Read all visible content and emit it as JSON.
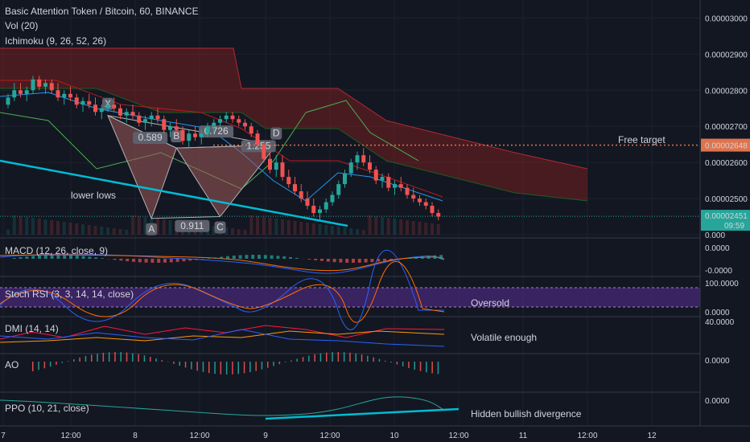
{
  "header": {
    "title": "Basic Attention Token / Bitcoin, 60, BINANCE",
    "vol": "Vol (20)",
    "ichimoku": "Ichimoku (9, 26, 52, 26)"
  },
  "price_axis": {
    "ticks": [
      "0.00003000",
      "0.00002900",
      "0.00002800",
      "0.00002700",
      "0.00002600",
      "0.00002500",
      "0.000"
    ],
    "ticks_v": [
      3.0,
      2.9,
      2.8,
      2.7,
      2.6,
      2.5,
      2.4
    ],
    "current_price": "0.00002451",
    "current_price_v": 2.451,
    "target_price": "0.00002648",
    "target_price_v": 2.648,
    "countdown": "09:59"
  },
  "time_axis": {
    "labels": [
      "7",
      "12:00",
      "8",
      "12:00",
      "9",
      "12:00",
      "10",
      "12:00",
      "11",
      "12:00",
      "12"
    ]
  },
  "pattern": {
    "points": [
      "X",
      "A",
      "B",
      "C",
      "D"
    ],
    "ratios": {
      "xb": "0.589",
      "ac": "0.911",
      "bd": "1.255",
      "xd": "0.726"
    }
  },
  "annotations": {
    "free_target": "Free target",
    "lower_lows": "lower lows",
    "oversold": "Oversold",
    "volatile": "Volatile enough",
    "hidden_div": "Hidden bullish divergence"
  },
  "indicators": {
    "macd": {
      "label": "MACD (12, 26, close, 9)",
      "ticks": [
        "0.0000",
        "-0.0000"
      ]
    },
    "stoch": {
      "label": "Stoch RSI (3, 3, 14, 14, close)",
      "ticks": [
        "100.0000",
        "0.0000"
      ]
    },
    "dmi": {
      "label": "DMI (14, 14)",
      "ticks": [
        "40.0000"
      ]
    },
    "ao": {
      "label": "AO",
      "ticks": [
        "0.0000"
      ]
    },
    "ppo": {
      "label": "PPO (10, 21, close)",
      "ticks": [
        "0.0000"
      ]
    }
  },
  "colors": {
    "bg": "#131722",
    "up": "#26a69a",
    "down": "#ef5350",
    "trend": "#00bcd4",
    "cloud": "#7d1f1f",
    "pattern_fill": "#a05a5a",
    "stoch_band": "#4a2a7a"
  },
  "chart_data": {
    "type": "candlestick",
    "ylim": [
      2.4,
      3.05
    ],
    "unit": "1e-5 BTC",
    "xlim": [
      0,
      130
    ],
    "candles_ohlc": [
      [
        2.76,
        2.79,
        2.75,
        2.78
      ],
      [
        2.78,
        2.82,
        2.77,
        2.8
      ],
      [
        2.8,
        2.82,
        2.78,
        2.79
      ],
      [
        2.79,
        2.81,
        2.77,
        2.8
      ],
      [
        2.8,
        2.84,
        2.79,
        2.83
      ],
      [
        2.83,
        2.84,
        2.8,
        2.81
      ],
      [
        2.81,
        2.83,
        2.79,
        2.82
      ],
      [
        2.82,
        2.83,
        2.79,
        2.8
      ],
      [
        2.8,
        2.82,
        2.77,
        2.78
      ],
      [
        2.78,
        2.8,
        2.76,
        2.79
      ],
      [
        2.79,
        2.81,
        2.77,
        2.78
      ],
      [
        2.78,
        2.79,
        2.75,
        2.76
      ],
      [
        2.76,
        2.78,
        2.74,
        2.77
      ],
      [
        2.77,
        2.79,
        2.75,
        2.76
      ],
      [
        2.76,
        2.78,
        2.73,
        2.74
      ],
      [
        2.74,
        2.76,
        2.72,
        2.75
      ],
      [
        2.75,
        2.77,
        2.74,
        2.76
      ],
      [
        2.76,
        2.78,
        2.74,
        2.75
      ],
      [
        2.75,
        2.76,
        2.72,
        2.73
      ],
      [
        2.73,
        2.75,
        2.71,
        2.74
      ],
      [
        2.74,
        2.76,
        2.72,
        2.73
      ],
      [
        2.73,
        2.74,
        2.7,
        2.71
      ],
      [
        2.71,
        2.73,
        2.69,
        2.72
      ],
      [
        2.72,
        2.74,
        2.7,
        2.73
      ],
      [
        2.73,
        2.75,
        2.71,
        2.72
      ],
      [
        2.72,
        2.73,
        2.68,
        2.69
      ],
      [
        2.69,
        2.71,
        2.67,
        2.7
      ],
      [
        2.7,
        2.72,
        2.68,
        2.69
      ],
      [
        2.69,
        2.7,
        2.65,
        2.66
      ],
      [
        2.66,
        2.69,
        2.64,
        2.68
      ],
      [
        2.68,
        2.7,
        2.66,
        2.67
      ],
      [
        2.67,
        2.69,
        2.65,
        2.68
      ],
      [
        2.68,
        2.71,
        2.67,
        2.7
      ],
      [
        2.7,
        2.72,
        2.68,
        2.71
      ],
      [
        2.71,
        2.73,
        2.7,
        2.72
      ],
      [
        2.72,
        2.74,
        2.71,
        2.73
      ],
      [
        2.73,
        2.74,
        2.71,
        2.72
      ],
      [
        2.72,
        2.73,
        2.7,
        2.71
      ],
      [
        2.71,
        2.72,
        2.69,
        2.7
      ],
      [
        2.7,
        2.71,
        2.67,
        2.68
      ],
      [
        2.68,
        2.69,
        2.64,
        2.65
      ],
      [
        2.65,
        2.66,
        2.6,
        2.61
      ],
      [
        2.61,
        2.63,
        2.57,
        2.58
      ],
      [
        2.58,
        2.62,
        2.56,
        2.6
      ],
      [
        2.6,
        2.62,
        2.55,
        2.56
      ],
      [
        2.56,
        2.58,
        2.53,
        2.54
      ],
      [
        2.54,
        2.56,
        2.51,
        2.52
      ],
      [
        2.52,
        2.54,
        2.49,
        2.5
      ],
      [
        2.5,
        2.52,
        2.47,
        2.48
      ],
      [
        2.48,
        2.5,
        2.45,
        2.46
      ],
      [
        2.46,
        2.48,
        2.44,
        2.47
      ],
      [
        2.47,
        2.5,
        2.46,
        2.49
      ],
      [
        2.49,
        2.52,
        2.48,
        2.51
      ],
      [
        2.51,
        2.55,
        2.5,
        2.54
      ],
      [
        2.54,
        2.58,
        2.53,
        2.57
      ],
      [
        2.57,
        2.61,
        2.56,
        2.6
      ],
      [
        2.6,
        2.63,
        2.58,
        2.62
      ],
      [
        2.62,
        2.64,
        2.59,
        2.6
      ],
      [
        2.6,
        2.62,
        2.57,
        2.58
      ],
      [
        2.58,
        2.59,
        2.54,
        2.55
      ],
      [
        2.55,
        2.57,
        2.53,
        2.56
      ],
      [
        2.56,
        2.57,
        2.52,
        2.53
      ],
      [
        2.53,
        2.55,
        2.51,
        2.54
      ],
      [
        2.54,
        2.56,
        2.52,
        2.53
      ],
      [
        2.53,
        2.54,
        2.5,
        2.51
      ],
      [
        2.51,
        2.53,
        2.49,
        2.5
      ],
      [
        2.5,
        2.51,
        2.48,
        2.49
      ],
      [
        2.49,
        2.5,
        2.47,
        2.48
      ],
      [
        2.48,
        2.49,
        2.45,
        2.46
      ],
      [
        2.46,
        2.47,
        2.44,
        2.45
      ]
    ],
    "pattern_xabcd": [
      [
        16,
        2.73
      ],
      [
        23,
        2.445
      ],
      [
        27,
        2.64
      ],
      [
        34,
        2.45
      ],
      [
        43,
        2.648
      ]
    ]
  }
}
